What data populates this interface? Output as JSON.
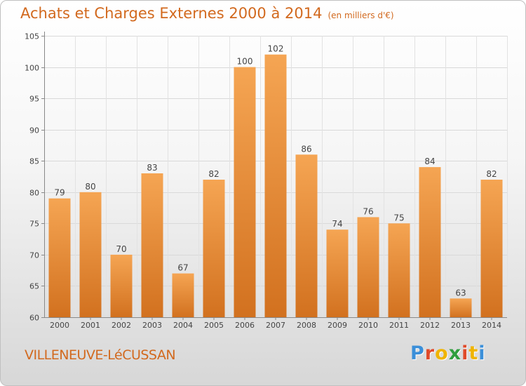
{
  "header": {
    "title": "Achats et Charges Externes 2000 à 2014",
    "unit": "(en milliers d'€)"
  },
  "footer": {
    "city": "VILLENEUVE-LéCUSSAN",
    "brand": "Proxiti"
  },
  "colors": {
    "bar_light": "#f5a553",
    "bar_dark": "#d2711f",
    "title": "#d2691e",
    "brand_letters": [
      "#3b8fd9",
      "#e04a2a",
      "#f0b400",
      "#2e9e3e",
      "#e04a2a",
      "#f0b400",
      "#3b8fd9"
    ]
  },
  "chart_data": {
    "type": "bar",
    "title": "Achats et Charges Externes 2000 à 2014",
    "categories": [
      "2000",
      "2001",
      "2002",
      "2003",
      "2004",
      "2005",
      "2006",
      "2007",
      "2008",
      "2009",
      "2010",
      "2011",
      "2012",
      "2013",
      "2014"
    ],
    "values": [
      79,
      80,
      70,
      83,
      67,
      82,
      100,
      102,
      86,
      74,
      76,
      75,
      84,
      63,
      82
    ],
    "ylim": [
      60,
      105
    ],
    "yticks": [
      60,
      65,
      70,
      75,
      80,
      85,
      90,
      95,
      100,
      105
    ],
    "grid": true,
    "xlabel": "",
    "ylabel": ""
  }
}
